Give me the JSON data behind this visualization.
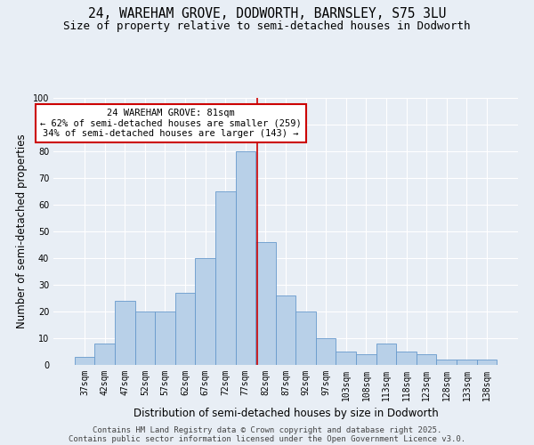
{
  "title1": "24, WAREHAM GROVE, DODWORTH, BARNSLEY, S75 3LU",
  "title2": "Size of property relative to semi-detached houses in Dodworth",
  "xlabel": "Distribution of semi-detached houses by size in Dodworth",
  "ylabel": "Number of semi-detached properties",
  "categories": [
    "37sqm",
    "42sqm",
    "47sqm",
    "52sqm",
    "57sqm",
    "62sqm",
    "67sqm",
    "72sqm",
    "77sqm",
    "82sqm",
    "87sqm",
    "92sqm",
    "97sqm",
    "103sqm",
    "108sqm",
    "113sqm",
    "118sqm",
    "123sqm",
    "128sqm",
    "133sqm",
    "138sqm"
  ],
  "values": [
    3,
    8,
    24,
    20,
    20,
    27,
    40,
    65,
    80,
    46,
    26,
    20,
    10,
    5,
    4,
    8,
    5,
    4,
    2,
    2,
    2
  ],
  "bar_color": "#b8d0e8",
  "bar_edge_color": "#6699cc",
  "background_color": "#e8eef5",
  "grid_color": "#ffffff",
  "annotation_text": "24 WAREHAM GROVE: 81sqm\n← 62% of semi-detached houses are smaller (259)\n34% of semi-detached houses are larger (143) →",
  "annotation_box_color": "#ffffff",
  "annotation_border_color": "#cc0000",
  "vline_color": "#cc0000",
  "vline_x": 8.6,
  "ylim": [
    0,
    100
  ],
  "yticks": [
    0,
    10,
    20,
    30,
    40,
    50,
    60,
    70,
    80,
    90,
    100
  ],
  "footer1": "Contains HM Land Registry data © Crown copyright and database right 2025.",
  "footer2": "Contains public sector information licensed under the Open Government Licence v3.0.",
  "title1_fontsize": 10.5,
  "title2_fontsize": 9,
  "tick_fontsize": 7,
  "ylabel_fontsize": 8.5,
  "xlabel_fontsize": 8.5,
  "annotation_fontsize": 7.5,
  "footer_fontsize": 6.5
}
